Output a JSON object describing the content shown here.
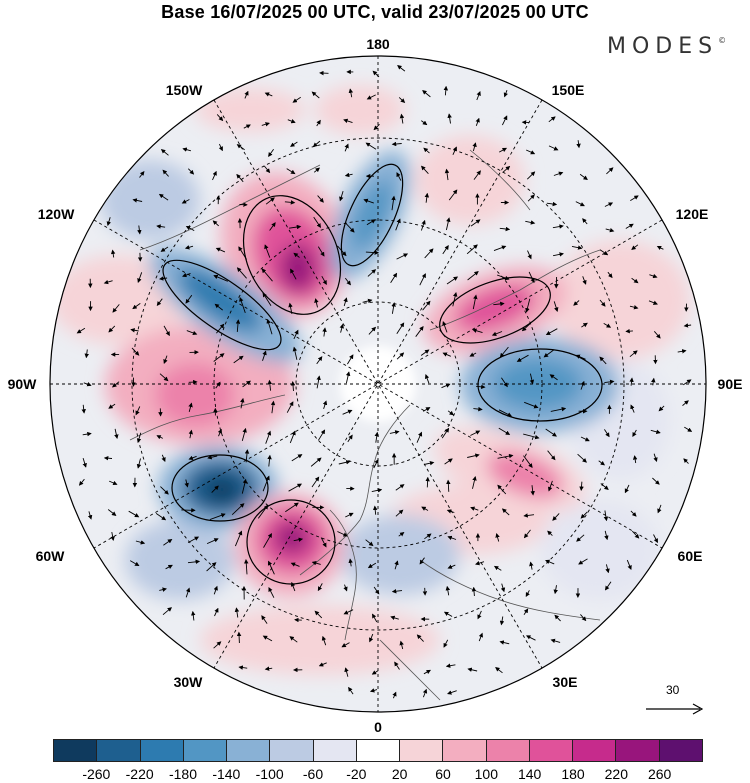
{
  "title": "Base 16/07/2025 00 UTC, valid 23/07/2025 00 UTC",
  "brand": {
    "name": "MODES",
    "mark": "©"
  },
  "longitude_labels": {
    "top": "180",
    "bottom": "0",
    "left": "90W",
    "right": "90E",
    "l150": "150W",
    "r150": "150E",
    "l120": "120W",
    "r120": "120E",
    "l60": "60W",
    "r60": "60E",
    "l30": "30W",
    "r30": "30E"
  },
  "reference_vector": {
    "value": "30"
  },
  "colorbar": {
    "colors": [
      "#0f3a5e",
      "#1e5f8f",
      "#2d7bb0",
      "#5296c4",
      "#89b1d5",
      "#bccbe3",
      "#e4e6f2",
      "#ffffff",
      "#f6d4d8",
      "#f3aec0",
      "#ec82aa",
      "#e0529a",
      "#c62b8c",
      "#98157c",
      "#5e106f"
    ],
    "ticks": [
      "-260",
      "-220",
      "-180",
      "-140",
      "-100",
      "-60",
      "-20",
      "20",
      "60",
      "100",
      "140",
      "180",
      "220",
      "260"
    ]
  },
  "anomalies": [
    {
      "kind": "positive",
      "color": "#c62b8c",
      "note": "strong high Alaska/Bering"
    },
    {
      "kind": "negative",
      "color": "#2d7bb0",
      "note": "low Canada NW"
    },
    {
      "kind": "negative",
      "color": "#1e5f8f",
      "note": "low west of Greenland"
    },
    {
      "kind": "positive",
      "color": "#c62b8c",
      "note": "strong high N Atlantic"
    },
    {
      "kind": "positive",
      "color": "#e0529a",
      "note": "high E Siberia"
    },
    {
      "kind": "negative",
      "color": "#5296c4",
      "note": "low Siberia"
    },
    {
      "kind": "positive",
      "color": "#ec82aa",
      "note": "high W Russia"
    }
  ]
}
